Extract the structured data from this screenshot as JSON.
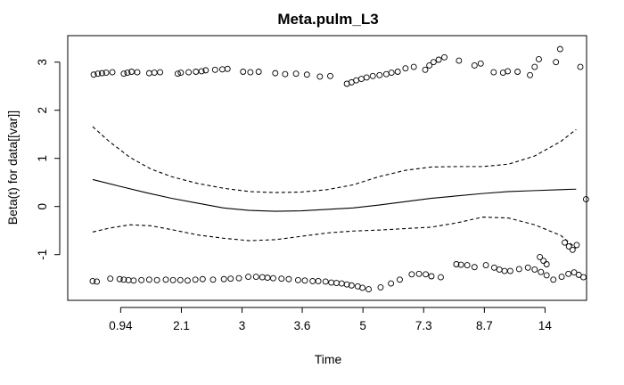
{
  "chart_data": {
    "type": "scatter",
    "title": "Meta.pulm_L3",
    "xlabel": "Time",
    "ylabel": "Beta(t) for data[[var]]",
    "x_scale": "rank-transformed (tick labels show Time values)",
    "xlim": [
      0,
      1
    ],
    "ylim": [
      -1.95,
      3.55
    ],
    "x_ticks": [
      {
        "pos": 0.102,
        "label": "0.94"
      },
      {
        "pos": 0.219,
        "label": "2.1"
      },
      {
        "pos": 0.336,
        "label": "3"
      },
      {
        "pos": 0.452,
        "label": "3.6"
      },
      {
        "pos": 0.569,
        "label": "5"
      },
      {
        "pos": 0.686,
        "label": "7.3"
      },
      {
        "pos": 0.803,
        "label": "8.7"
      },
      {
        "pos": 0.92,
        "label": "14"
      }
    ],
    "y_ticks": [
      {
        "value": -1,
        "label": "-1"
      },
      {
        "value": 0,
        "label": "0"
      },
      {
        "value": 1,
        "label": "1"
      },
      {
        "value": 2,
        "label": "2"
      },
      {
        "value": 3,
        "label": "3"
      }
    ],
    "grid": false,
    "legend": "none",
    "series": [
      {
        "role": "smoothed fit",
        "style": "solid",
        "points": [
          [
            0.048,
            0.56
          ],
          [
            0.1,
            0.42
          ],
          [
            0.15,
            0.29
          ],
          [
            0.2,
            0.17
          ],
          [
            0.25,
            0.07
          ],
          [
            0.3,
            -0.03
          ],
          [
            0.35,
            -0.08
          ],
          [
            0.4,
            -0.1
          ],
          [
            0.45,
            -0.09
          ],
          [
            0.5,
            -0.06
          ],
          [
            0.55,
            -0.03
          ],
          [
            0.6,
            0.03
          ],
          [
            0.65,
            0.1
          ],
          [
            0.7,
            0.17
          ],
          [
            0.75,
            0.22
          ],
          [
            0.8,
            0.27
          ],
          [
            0.85,
            0.31
          ],
          [
            0.9,
            0.33
          ],
          [
            0.95,
            0.35
          ],
          [
            0.98,
            0.36
          ]
        ]
      },
      {
        "role": "upper confidence band",
        "style": "dashed",
        "points": [
          [
            0.048,
            1.66
          ],
          [
            0.08,
            1.35
          ],
          [
            0.12,
            1.02
          ],
          [
            0.16,
            0.78
          ],
          [
            0.2,
            0.62
          ],
          [
            0.25,
            0.48
          ],
          [
            0.3,
            0.38
          ],
          [
            0.35,
            0.31
          ],
          [
            0.4,
            0.29
          ],
          [
            0.45,
            0.3
          ],
          [
            0.5,
            0.35
          ],
          [
            0.55,
            0.45
          ],
          [
            0.6,
            0.62
          ],
          [
            0.65,
            0.75
          ],
          [
            0.7,
            0.82
          ],
          [
            0.75,
            0.83
          ],
          [
            0.8,
            0.83
          ],
          [
            0.85,
            0.88
          ],
          [
            0.9,
            1.05
          ],
          [
            0.95,
            1.35
          ],
          [
            0.98,
            1.6
          ]
        ]
      },
      {
        "role": "lower confidence band",
        "style": "dashed",
        "points": [
          [
            0.048,
            -0.53
          ],
          [
            0.08,
            -0.45
          ],
          [
            0.12,
            -0.38
          ],
          [
            0.16,
            -0.4
          ],
          [
            0.2,
            -0.48
          ],
          [
            0.25,
            -0.59
          ],
          [
            0.3,
            -0.66
          ],
          [
            0.35,
            -0.71
          ],
          [
            0.4,
            -0.69
          ],
          [
            0.45,
            -0.62
          ],
          [
            0.5,
            -0.55
          ],
          [
            0.55,
            -0.51
          ],
          [
            0.6,
            -0.49
          ],
          [
            0.65,
            -0.46
          ],
          [
            0.7,
            -0.43
          ],
          [
            0.75,
            -0.34
          ],
          [
            0.8,
            -0.22
          ],
          [
            0.85,
            -0.24
          ],
          [
            0.9,
            -0.38
          ],
          [
            0.95,
            -0.6
          ],
          [
            0.98,
            -0.87
          ]
        ]
      },
      {
        "role": "residual points",
        "style": "open-circle",
        "points": [
          [
            0.05,
            2.74
          ],
          [
            0.058,
            2.76
          ],
          [
            0.066,
            2.77
          ],
          [
            0.074,
            2.78
          ],
          [
            0.086,
            2.79
          ],
          [
            0.108,
            2.76
          ],
          [
            0.115,
            2.78
          ],
          [
            0.123,
            2.8
          ],
          [
            0.134,
            2.79
          ],
          [
            0.157,
            2.77
          ],
          [
            0.167,
            2.78
          ],
          [
            0.178,
            2.79
          ],
          [
            0.212,
            2.76
          ],
          [
            0.218,
            2.78
          ],
          [
            0.233,
            2.79
          ],
          [
            0.247,
            2.8
          ],
          [
            0.258,
            2.81
          ],
          [
            0.266,
            2.83
          ],
          [
            0.284,
            2.84
          ],
          [
            0.298,
            2.85
          ],
          [
            0.308,
            2.86
          ],
          [
            0.338,
            2.8
          ],
          [
            0.352,
            2.79
          ],
          [
            0.368,
            2.8
          ],
          [
            0.4,
            2.77
          ],
          [
            0.419,
            2.75
          ],
          [
            0.44,
            2.76
          ],
          [
            0.461,
            2.74
          ],
          [
            0.486,
            2.7
          ],
          [
            0.506,
            2.71
          ],
          [
            0.538,
            2.55
          ],
          [
            0.547,
            2.58
          ],
          [
            0.556,
            2.62
          ],
          [
            0.566,
            2.65
          ],
          [
            0.576,
            2.68
          ],
          [
            0.588,
            2.71
          ],
          [
            0.601,
            2.73
          ],
          [
            0.614,
            2.75
          ],
          [
            0.624,
            2.78
          ],
          [
            0.636,
            2.8
          ],
          [
            0.651,
            2.87
          ],
          [
            0.667,
            2.9
          ],
          [
            0.689,
            2.84
          ],
          [
            0.697,
            2.93
          ],
          [
            0.705,
            3.0
          ],
          [
            0.715,
            3.05
          ],
          [
            0.726,
            3.1
          ],
          [
            0.754,
            3.03
          ],
          [
            0.784,
            2.93
          ],
          [
            0.796,
            2.97
          ],
          [
            0.821,
            2.79
          ],
          [
            0.839,
            2.78
          ],
          [
            0.848,
            2.81
          ],
          [
            0.867,
            2.8
          ],
          [
            0.891,
            2.73
          ],
          [
            0.9,
            2.9
          ],
          [
            0.908,
            3.06
          ],
          [
            0.941,
            3.0
          ],
          [
            0.949,
            3.27
          ],
          [
            0.988,
            2.9
          ],
          [
            0.048,
            -1.55
          ],
          [
            0.056,
            -1.56
          ],
          [
            0.082,
            -1.5
          ],
          [
            0.1,
            -1.51
          ],
          [
            0.108,
            -1.52
          ],
          [
            0.117,
            -1.53
          ],
          [
            0.127,
            -1.54
          ],
          [
            0.142,
            -1.53
          ],
          [
            0.157,
            -1.52
          ],
          [
            0.172,
            -1.53
          ],
          [
            0.189,
            -1.52
          ],
          [
            0.203,
            -1.53
          ],
          [
            0.217,
            -1.53
          ],
          [
            0.231,
            -1.54
          ],
          [
            0.246,
            -1.52
          ],
          [
            0.26,
            -1.51
          ],
          [
            0.28,
            -1.52
          ],
          [
            0.301,
            -1.51
          ],
          [
            0.314,
            -1.5
          ],
          [
            0.33,
            -1.49
          ],
          [
            0.348,
            -1.46
          ],
          [
            0.363,
            -1.46
          ],
          [
            0.375,
            -1.47
          ],
          [
            0.385,
            -1.48
          ],
          [
            0.396,
            -1.49
          ],
          [
            0.412,
            -1.5
          ],
          [
            0.426,
            -1.51
          ],
          [
            0.444,
            -1.53
          ],
          [
            0.457,
            -1.54
          ],
          [
            0.472,
            -1.55
          ],
          [
            0.483,
            -1.55
          ],
          [
            0.497,
            -1.56
          ],
          [
            0.508,
            -1.58
          ],
          [
            0.518,
            -1.59
          ],
          [
            0.528,
            -1.6
          ],
          [
            0.538,
            -1.62
          ],
          [
            0.547,
            -1.64
          ],
          [
            0.559,
            -1.66
          ],
          [
            0.568,
            -1.69
          ],
          [
            0.58,
            -1.72
          ],
          [
            0.603,
            -1.68
          ],
          [
            0.623,
            -1.6
          ],
          [
            0.64,
            -1.52
          ],
          [
            0.663,
            -1.41
          ],
          [
            0.677,
            -1.4
          ],
          [
            0.69,
            -1.41
          ],
          [
            0.701,
            -1.45
          ],
          [
            0.719,
            -1.47
          ],
          [
            0.749,
            -1.2
          ],
          [
            0.758,
            -1.21
          ],
          [
            0.77,
            -1.22
          ],
          [
            0.784,
            -1.26
          ],
          [
            0.806,
            -1.22
          ],
          [
            0.822,
            -1.27
          ],
          [
            0.832,
            -1.31
          ],
          [
            0.842,
            -1.34
          ],
          [
            0.853,
            -1.34
          ],
          [
            0.87,
            -1.3
          ],
          [
            0.887,
            -1.27
          ],
          [
            0.9,
            -1.31
          ],
          [
            0.912,
            -1.36
          ],
          [
            0.923,
            -1.43
          ],
          [
            0.936,
            -1.52
          ],
          [
            0.952,
            -1.46
          ],
          [
            0.965,
            -1.4
          ],
          [
            0.976,
            -1.37
          ],
          [
            0.985,
            -1.42
          ],
          [
            0.994,
            -1.47
          ],
          [
            0.91,
            -1.05
          ],
          [
            0.917,
            -1.13
          ],
          [
            0.923,
            -1.2
          ],
          [
            0.958,
            -0.75
          ],
          [
            0.966,
            -0.83
          ],
          [
            0.973,
            -0.9
          ],
          [
            0.981,
            -0.8
          ],
          [
            0.999,
            0.15
          ]
        ]
      }
    ]
  }
}
